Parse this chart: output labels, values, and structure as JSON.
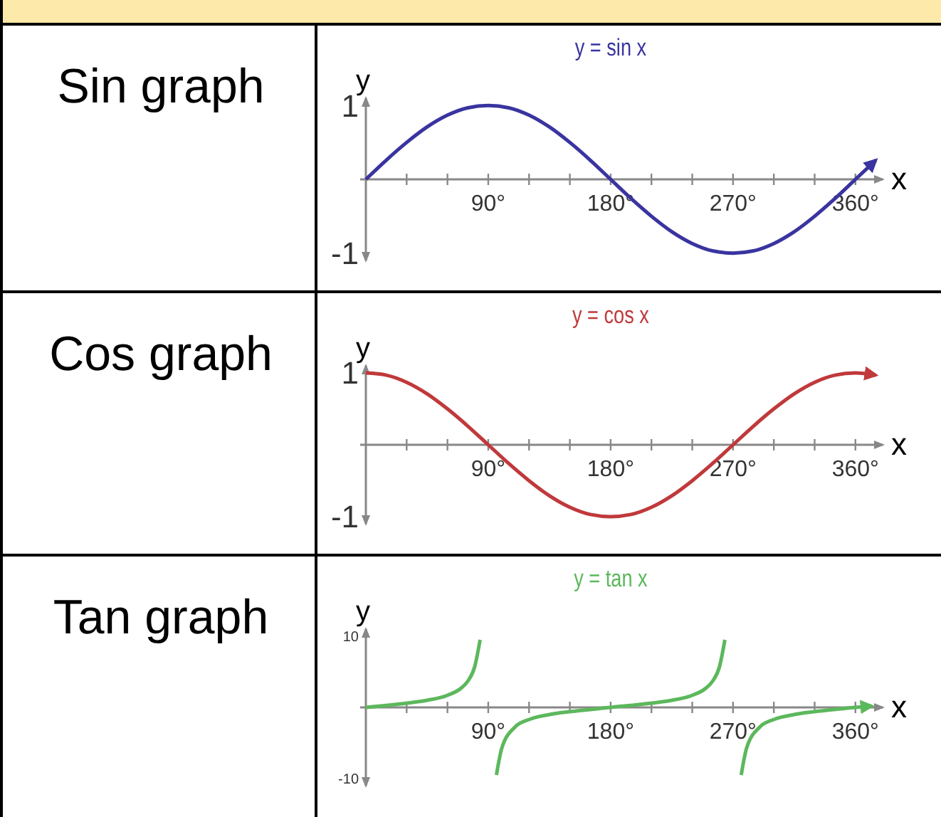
{
  "chart_data": [
    {
      "type": "line",
      "title": "Sin graph",
      "xlabel": "x",
      "ylabel": "y",
      "annotations": [
        "y = sin x"
      ],
      "xlim": [
        0,
        380
      ],
      "ylim": [
        -1.1,
        1.1
      ],
      "xticks": [
        {
          "value": 30,
          "label": null
        },
        {
          "value": 60,
          "label": null
        },
        {
          "value": 90,
          "label": "90°"
        },
        {
          "value": 120,
          "label": null
        },
        {
          "value": 150,
          "label": null
        },
        {
          "value": 180,
          "label": "180°"
        },
        {
          "value": 210,
          "label": null
        },
        {
          "value": 240,
          "label": null
        },
        {
          "value": 270,
          "label": "270°"
        },
        {
          "value": 300,
          "label": null
        },
        {
          "value": 330,
          "label": null
        },
        {
          "value": 360,
          "label": "360°"
        }
      ],
      "yticks": [
        1,
        -1
      ],
      "series": [
        {
          "color": "#3a34a0",
          "x": [
            0,
            15,
            30,
            45,
            60,
            75,
            90,
            105,
            120,
            135,
            150,
            165,
            180,
            195,
            210,
            225,
            240,
            255,
            270,
            285,
            300,
            315,
            330,
            345,
            360,
            375
          ],
          "values": [
            0,
            0.26,
            0.5,
            0.71,
            0.87,
            0.97,
            1,
            0.97,
            0.87,
            0.71,
            0.5,
            0.26,
            0,
            -0.26,
            -0.5,
            -0.71,
            -0.87,
            -0.97,
            -1,
            -0.97,
            -0.87,
            -0.71,
            -0.5,
            -0.26,
            0,
            0.26
          ]
        }
      ]
    },
    {
      "type": "line",
      "title": "Cos graph",
      "xlabel": "x",
      "ylabel": "y",
      "annotations": [
        "y = cos x"
      ],
      "xlim": [
        0,
        380
      ],
      "ylim": [
        -1.1,
        1.1
      ],
      "xticks": [
        {
          "value": 30,
          "label": null
        },
        {
          "value": 60,
          "label": null
        },
        {
          "value": 90,
          "label": "90°"
        },
        {
          "value": 120,
          "label": null
        },
        {
          "value": 150,
          "label": null
        },
        {
          "value": 180,
          "label": "180°"
        },
        {
          "value": 210,
          "label": null
        },
        {
          "value": 240,
          "label": null
        },
        {
          "value": 270,
          "label": "270°"
        },
        {
          "value": 300,
          "label": null
        },
        {
          "value": 330,
          "label": null
        },
        {
          "value": 360,
          "label": "360°"
        }
      ],
      "yticks": [
        1,
        -1
      ],
      "series": [
        {
          "color": "#c0393b",
          "x": [
            0,
            15,
            30,
            45,
            60,
            75,
            90,
            105,
            120,
            135,
            150,
            165,
            180,
            195,
            210,
            225,
            240,
            255,
            270,
            285,
            300,
            315,
            330,
            345,
            360,
            375
          ],
          "values": [
            1,
            0.97,
            0.87,
            0.71,
            0.5,
            0.26,
            0,
            -0.26,
            -0.5,
            -0.71,
            -0.87,
            -0.97,
            -1,
            -0.97,
            -0.87,
            -0.71,
            -0.5,
            -0.26,
            0,
            0.26,
            0.5,
            0.71,
            0.87,
            0.97,
            1,
            0.97
          ]
        }
      ]
    },
    {
      "type": "line",
      "title": "Tan graph",
      "xlabel": "x",
      "ylabel": "y",
      "annotations": [
        "y = tan x"
      ],
      "xlim": [
        0,
        380
      ],
      "ylim": [
        -11,
        11
      ],
      "xticks": [
        {
          "value": 30,
          "label": null
        },
        {
          "value": 60,
          "label": null
        },
        {
          "value": 90,
          "label": "90°"
        },
        {
          "value": 120,
          "label": null
        },
        {
          "value": 150,
          "label": null
        },
        {
          "value": 180,
          "label": "180°"
        },
        {
          "value": 210,
          "label": null
        },
        {
          "value": 240,
          "label": null
        },
        {
          "value": 270,
          "label": "270°"
        },
        {
          "value": 300,
          "label": null
        },
        {
          "value": 330,
          "label": null
        },
        {
          "value": 360,
          "label": "360°"
        }
      ],
      "yticks": [
        10,
        -10
      ],
      "series": [
        {
          "color": "#5cb85c",
          "x": [
            0,
            30,
            45,
            60,
            70,
            75,
            80,
            84,
            90,
            96,
            100,
            110,
            120,
            135,
            150,
            180,
            210,
            225,
            240,
            250,
            255,
            260,
            264,
            270,
            276,
            280,
            290,
            300,
            315,
            330,
            360,
            372
          ],
          "values": [
            0,
            0.6,
            1,
            1.7,
            2.7,
            3.7,
            5.7,
            9.5,
            null,
            -9.5,
            -5.7,
            -2.7,
            -1.7,
            -1,
            -0.6,
            0,
            0.6,
            1,
            1.7,
            2.7,
            3.7,
            5.7,
            9.5,
            null,
            -9.5,
            -5.7,
            -2.7,
            -1.7,
            -1,
            -0.6,
            0,
            0.2
          ]
        }
      ]
    }
  ]
}
